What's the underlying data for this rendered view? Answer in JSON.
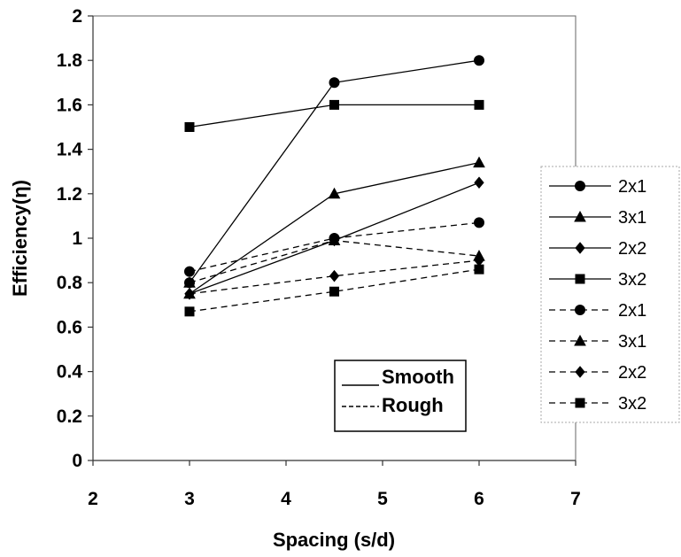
{
  "chart_data": {
    "type": "line",
    "xlabel": "Spacing (s/d)",
    "ylabel": "Efficiency(η)",
    "xlim": [
      2,
      7
    ],
    "ylim": [
      0,
      2
    ],
    "xticks": [
      "2",
      "3",
      "4",
      "5",
      "6",
      "7"
    ],
    "yticks": [
      "0",
      "0.2",
      "0.4",
      "0.6",
      "0.8",
      "1",
      "1.2",
      "1.4",
      "1.6",
      "1.8",
      "2"
    ],
    "x": [
      3,
      4.5,
      6
    ],
    "series": [
      {
        "name": "2x1",
        "surface": "smooth",
        "marker": "circle",
        "values": [
          0.8,
          1.7,
          1.8
        ]
      },
      {
        "name": "3x1",
        "surface": "smooth",
        "marker": "triangle",
        "values": [
          0.75,
          1.2,
          1.34
        ]
      },
      {
        "name": "2x2",
        "surface": "smooth",
        "marker": "diamond",
        "values": [
          0.75,
          0.99,
          1.25
        ]
      },
      {
        "name": "3x2",
        "surface": "smooth",
        "marker": "square",
        "values": [
          1.5,
          1.6,
          1.6
        ]
      },
      {
        "name": "2x1",
        "surface": "rough",
        "marker": "circle",
        "values": [
          0.85,
          1.0,
          1.07
        ]
      },
      {
        "name": "3x1",
        "surface": "rough",
        "marker": "triangle",
        "values": [
          0.8,
          0.99,
          0.92
        ]
      },
      {
        "name": "2x2",
        "surface": "rough",
        "marker": "diamond",
        "values": [
          0.75,
          0.83,
          0.9
        ]
      },
      {
        "name": "3x2",
        "surface": "rough",
        "marker": "square",
        "values": [
          0.67,
          0.76,
          0.86
        ]
      }
    ],
    "type_legend": [
      {
        "label": "Smooth",
        "line": "solid"
      },
      {
        "label": "Rough",
        "line": "dashed"
      }
    ],
    "legend_position": "right",
    "grid": false
  }
}
